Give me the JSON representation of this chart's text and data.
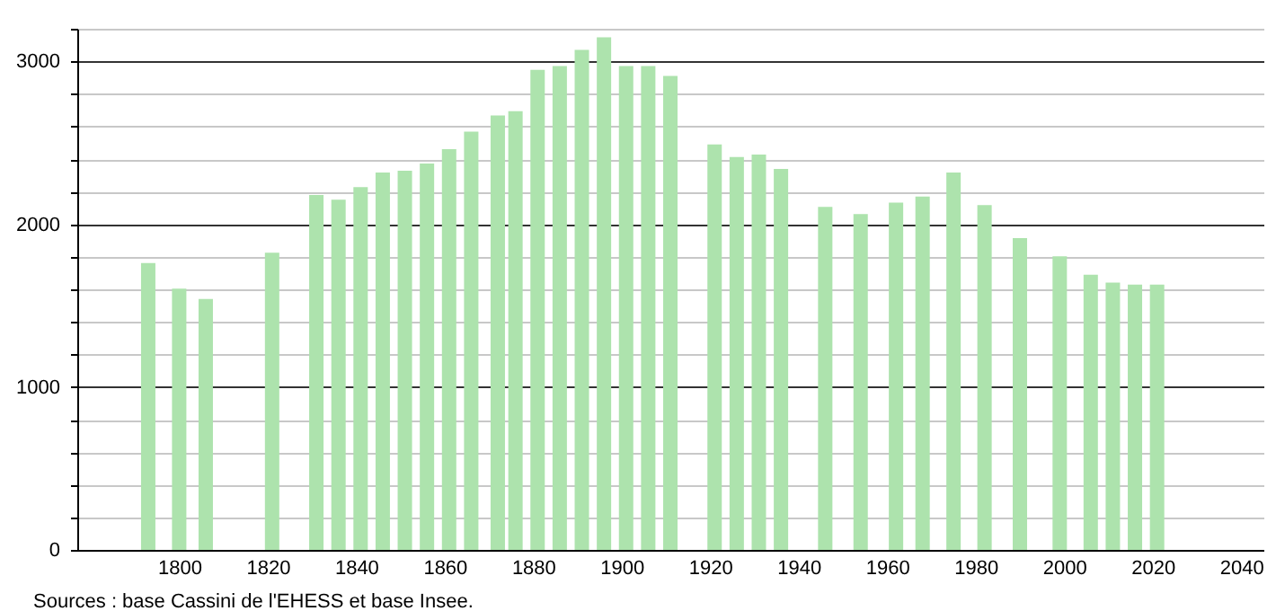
{
  "chart_data": {
    "type": "bar",
    "annotations": [
      "Sources : base Cassini de l'EHESS et base Insee."
    ],
    "x": [
      1793,
      1800,
      1806,
      1821,
      1831,
      1836,
      1841,
      1846,
      1851,
      1856,
      1861,
      1866,
      1872,
      1876,
      1881,
      1886,
      1891,
      1896,
      1901,
      1906,
      1911,
      1921,
      1926,
      1931,
      1936,
      1946,
      1954,
      1962,
      1968,
      1975,
      1982,
      1990,
      1999,
      2006,
      2011,
      2016,
      2021
    ],
    "values": [
      1762,
      1604,
      1541,
      1825,
      2180,
      2150,
      2228,
      2317,
      2328,
      2372,
      2461,
      2568,
      2668,
      2694,
      2948,
      2971,
      3070,
      3148,
      2971,
      2971,
      2911,
      2490,
      2413,
      2428,
      2339,
      2106,
      2062,
      2132,
      2169,
      2317,
      2117,
      1914,
      1803,
      1689,
      1641,
      1629,
      1629
    ],
    "color": "#ade3ad",
    "xlim": [
      1779,
      2043
    ],
    "xticks": [
      1800,
      1820,
      1840,
      1860,
      1880,
      1900,
      1920,
      1940,
      1960,
      1980,
      2000,
      2020,
      2040
    ],
    "ylim": [
      0,
      3200
    ],
    "yticks": [
      0,
      {
        "value": 200,
        "label": null
      },
      {
        "value": 400,
        "label": null
      },
      {
        "value": 600,
        "label": null
      },
      {
        "value": 800,
        "label": null
      },
      1000,
      {
        "value": 1200,
        "label": null
      },
      {
        "value": 1400,
        "label": null
      },
      {
        "value": 1600,
        "label": null
      },
      {
        "value": 1800,
        "label": null
      },
      2000,
      {
        "value": 2200,
        "label": null
      },
      {
        "value": 2400,
        "label": null
      },
      {
        "value": 2600,
        "label": null
      },
      {
        "value": 2800,
        "label": null
      },
      3000,
      {
        "value": 3200,
        "label": null
      }
    ],
    "grid": "y"
  }
}
